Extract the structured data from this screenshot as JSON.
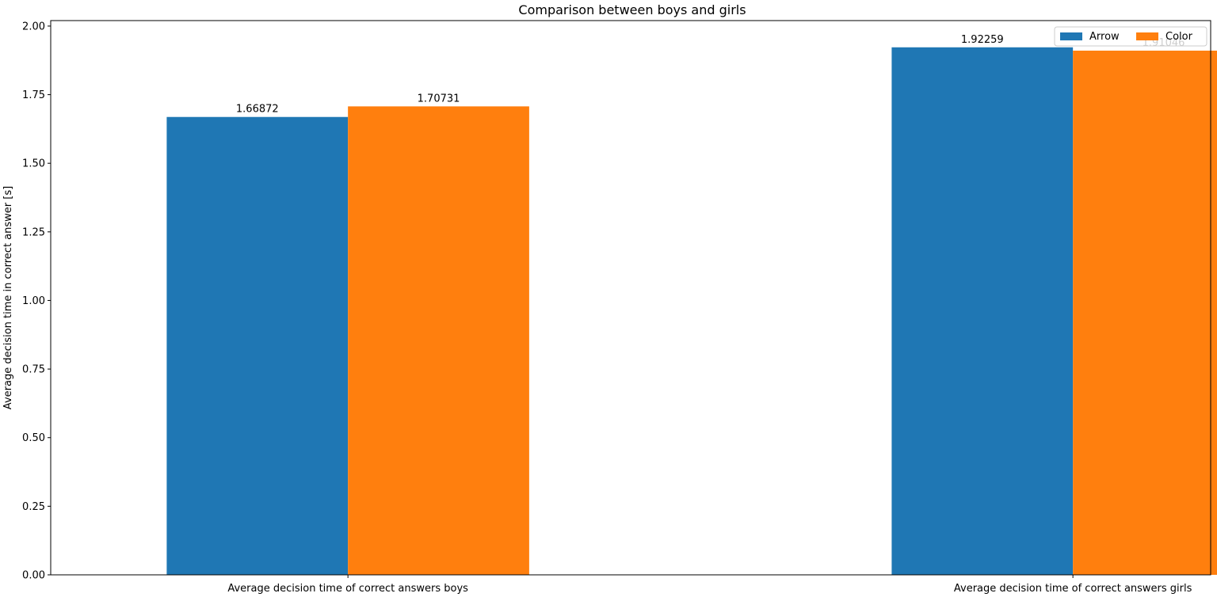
{
  "chart_data": {
    "type": "bar",
    "title": "Comparison between boys and girls",
    "xlabel": "",
    "ylabel": "Average decision time in correct answer [s]",
    "categories": [
      "Average decision time of correct answers boys",
      "Average decision time of correct answers girls"
    ],
    "series": [
      {
        "name": "Arrow",
        "values": [
          1.66872,
          1.92259
        ],
        "labels": [
          "1.66872",
          "1.92259"
        ],
        "color": "#1f77b4"
      },
      {
        "name": "Color",
        "values": [
          1.70731,
          1.91046
        ],
        "labels": [
          "1.70731",
          "1.91046"
        ],
        "color": "#ff7f0e"
      }
    ],
    "ylim": [
      0,
      2.02
    ],
    "yticks": [
      "0.00",
      "0.25",
      "0.50",
      "0.75",
      "1.00",
      "1.25",
      "1.50",
      "1.75",
      "2.00"
    ],
    "grid": false,
    "legend_position": "top-right"
  }
}
